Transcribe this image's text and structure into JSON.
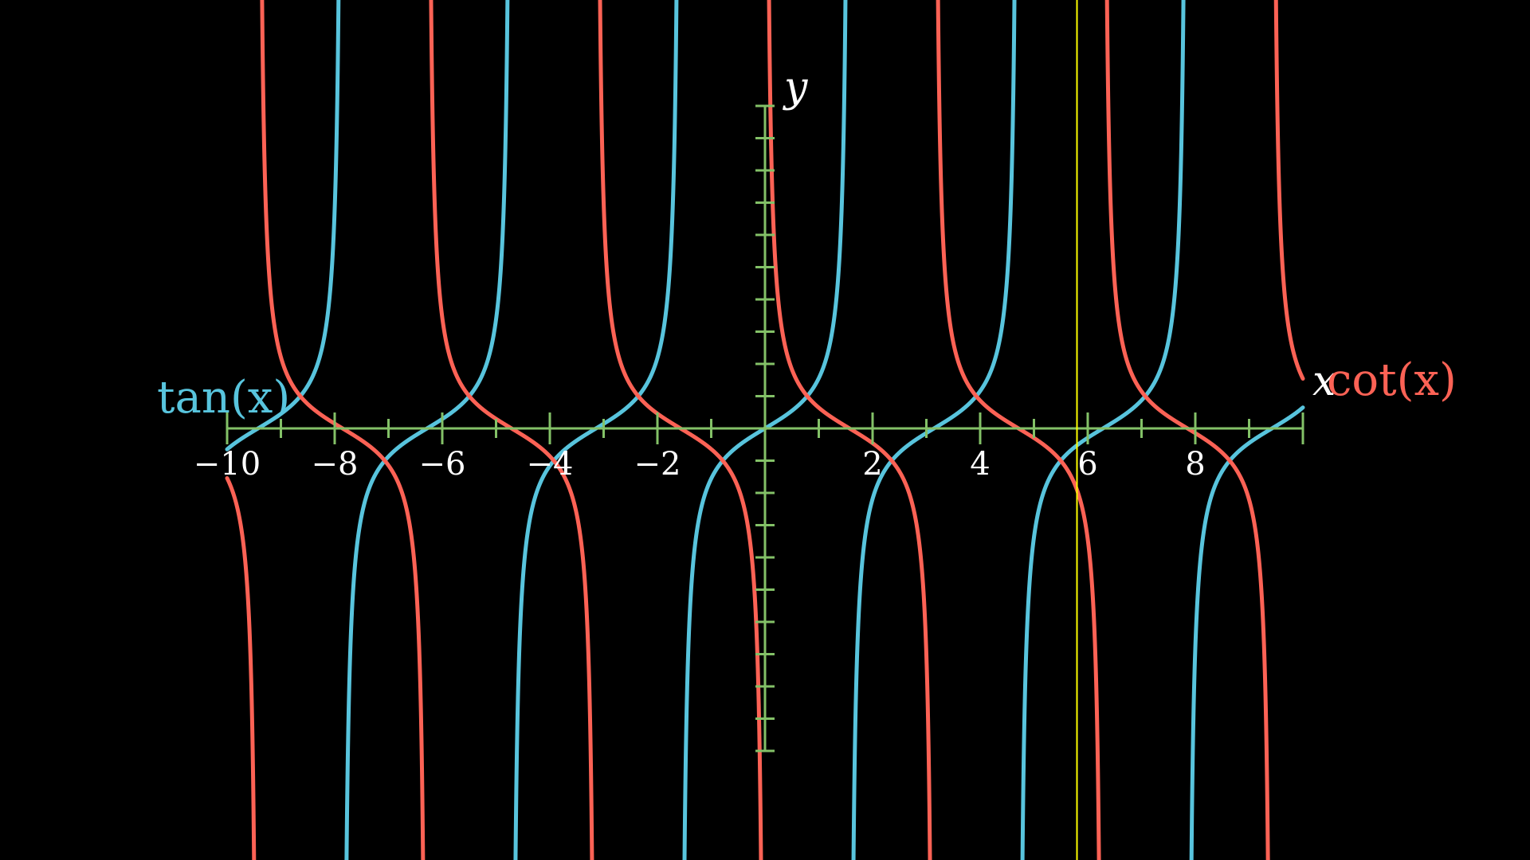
{
  "chart_data": {
    "type": "line",
    "x_axis": {
      "label": "x",
      "range": [
        -10,
        10
      ],
      "major_step": 2,
      "minor_step": 1,
      "tick_labels": [
        "−10",
        "−8",
        "−6",
        "−4",
        "−2",
        "2",
        "4",
        "6",
        "8"
      ],
      "tick_values": [
        -10,
        -8,
        -6,
        -4,
        -2,
        2,
        4,
        6,
        8
      ]
    },
    "y_axis": {
      "label": "y",
      "range": [
        -10,
        10
      ],
      "minor_step": 1,
      "tick_labels_shown": false
    },
    "series": [
      {
        "name": "tan(x)",
        "function": "tan",
        "color": "#58C4DD"
      },
      {
        "name": "cot(x)",
        "function": "cot",
        "color": "#FC6255"
      }
    ],
    "vertical_marker": {
      "x": 5.8,
      "color": "#FFFF00"
    },
    "grid": false,
    "legend": "labels placed at curve ends",
    "axis_color": "#83C167",
    "background": "#000000"
  }
}
